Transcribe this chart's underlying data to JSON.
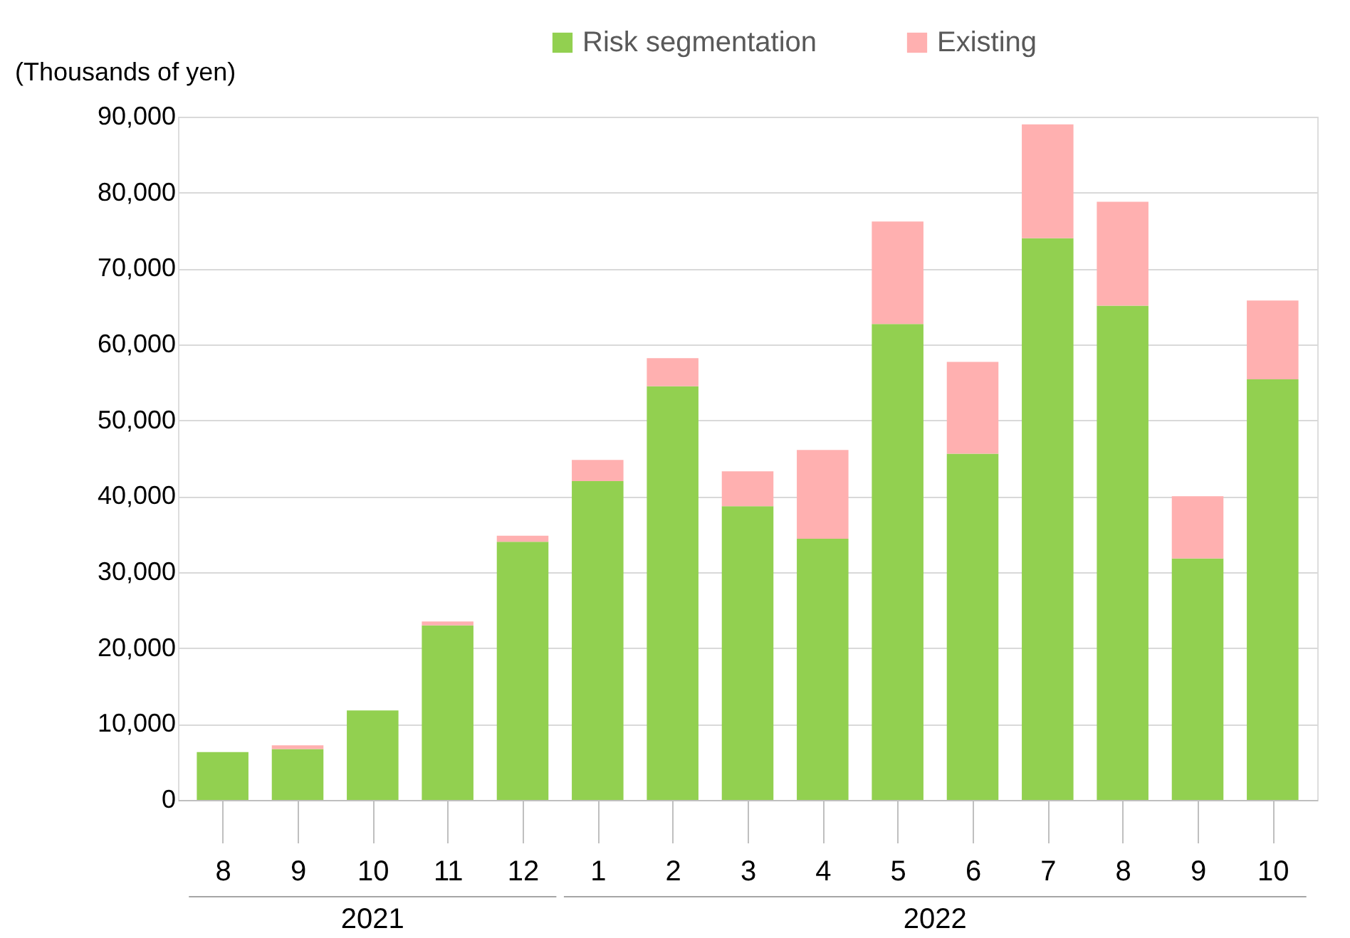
{
  "chart_data": {
    "type": "bar",
    "stacked": true,
    "ylabel": "(Thousands of yen)",
    "categories": [
      "8",
      "9",
      "10",
      "11",
      "12",
      "1",
      "2",
      "3",
      "4",
      "5",
      "6",
      "7",
      "8",
      "9",
      "10"
    ],
    "series": [
      {
        "name": "Risk segmentation",
        "color": "#92d050",
        "values": [
          6300,
          6700,
          11800,
          23000,
          34000,
          42000,
          54500,
          38700,
          34400,
          62700,
          45600,
          74000,
          65100,
          31800,
          55400
        ]
      },
      {
        "name": "Existing",
        "color": "#ffb0b0",
        "values": [
          null,
          500,
          null,
          500,
          800,
          2800,
          3700,
          4600,
          11700,
          13500,
          12100,
          15000,
          13700,
          8200,
          10400
        ]
      }
    ],
    "ylim": [
      0,
      90000
    ],
    "yticks": [
      {
        "value": 0,
        "label": "0"
      },
      {
        "value": 10000,
        "label": "10,000"
      },
      {
        "value": 20000,
        "label": "20,000"
      },
      {
        "value": 30000,
        "label": "30,000"
      },
      {
        "value": 40000,
        "label": "40,000"
      },
      {
        "value": 50000,
        "label": "50,000"
      },
      {
        "value": 60000,
        "label": "60,000"
      },
      {
        "value": 70000,
        "label": "70,000"
      },
      {
        "value": 80000,
        "label": "80,000"
      },
      {
        "value": 90000,
        "label": "90,000"
      }
    ],
    "grid": "y",
    "legend": "top",
    "annotations": [
      "2021",
      "2022"
    ]
  }
}
